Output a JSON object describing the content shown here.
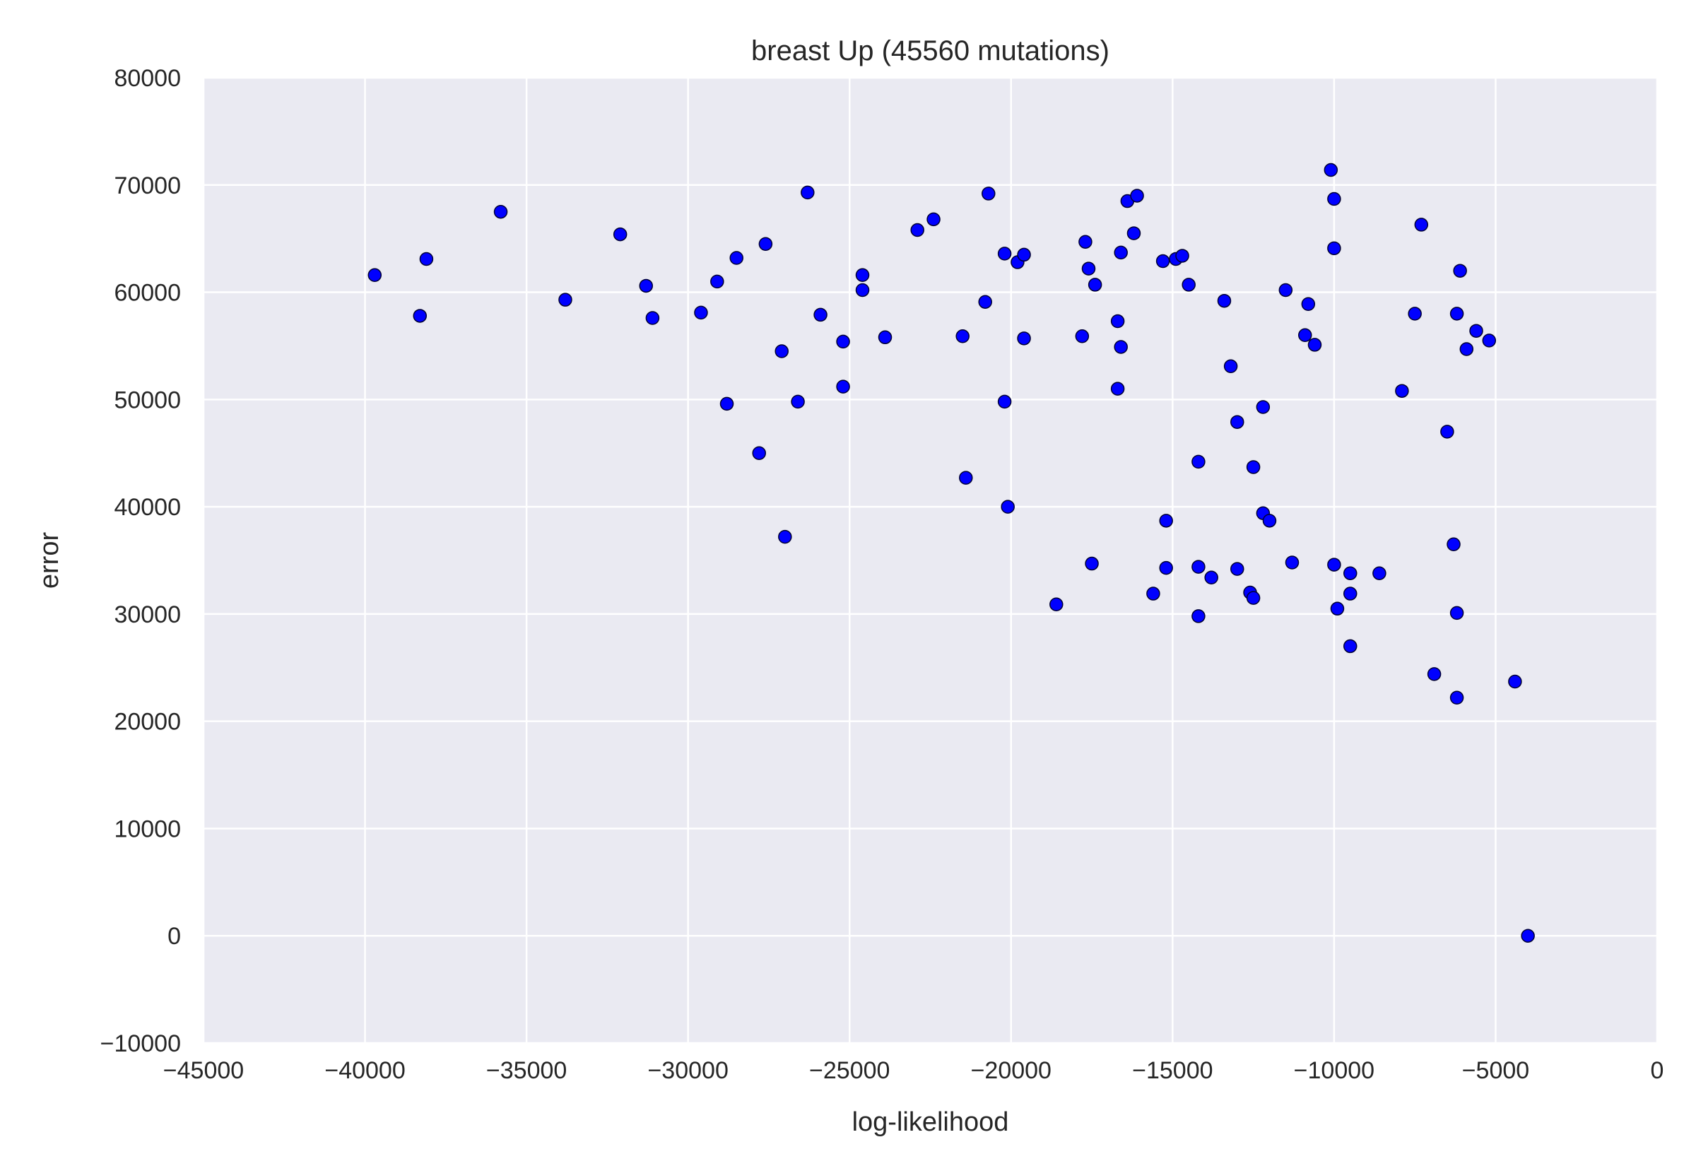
{
  "chart_data": {
    "type": "scatter",
    "title": "breast Up (45560 mutations)",
    "xlabel": "log-likelihood",
    "ylabel": "error",
    "xlim": [
      -45000,
      0
    ],
    "ylim": [
      -10000,
      80000
    ],
    "xticks": [
      -45000,
      -40000,
      -35000,
      -30000,
      -25000,
      -20000,
      -15000,
      -10000,
      -5000,
      0
    ],
    "yticks": [
      -10000,
      0,
      10000,
      20000,
      30000,
      40000,
      50000,
      60000,
      70000,
      80000
    ],
    "xtick_labels": [
      "−45000",
      "−40000",
      "−35000",
      "−30000",
      "−25000",
      "−20000",
      "−15000",
      "−10000",
      "−5000",
      "0"
    ],
    "ytick_labels": [
      "−10000",
      "0",
      "10000",
      "20000",
      "30000",
      "40000",
      "50000",
      "60000",
      "70000",
      "80000"
    ],
    "grid": true,
    "colors": {
      "plot_background": "#eaeaf2",
      "grid": "#ffffff",
      "point_fill": "#0000ff",
      "point_edge": "#000033"
    },
    "series": [
      {
        "points": [
          [
            -39700,
            61600
          ],
          [
            -38300,
            57800
          ],
          [
            -38100,
            63100
          ],
          [
            -35800,
            67500
          ],
          [
            -33800,
            59300
          ],
          [
            -32100,
            65400
          ],
          [
            -31300,
            60600
          ],
          [
            -31100,
            57600
          ],
          [
            -29600,
            58100
          ],
          [
            -29100,
            61000
          ],
          [
            -28800,
            49600
          ],
          [
            -28500,
            63200
          ],
          [
            -27800,
            45000
          ],
          [
            -27600,
            64500
          ],
          [
            -27100,
            54500
          ],
          [
            -27000,
            37200
          ],
          [
            -26600,
            49800
          ],
          [
            -26300,
            69300
          ],
          [
            -25900,
            57900
          ],
          [
            -25200,
            55400
          ],
          [
            -25200,
            51200
          ],
          [
            -24600,
            61600
          ],
          [
            -24600,
            60200
          ],
          [
            -23900,
            55800
          ],
          [
            -22900,
            65800
          ],
          [
            -22400,
            66800
          ],
          [
            -21500,
            55900
          ],
          [
            -21400,
            42700
          ],
          [
            -20800,
            59100
          ],
          [
            -20700,
            69200
          ],
          [
            -20200,
            63600
          ],
          [
            -20200,
            49800
          ],
          [
            -20100,
            40000
          ],
          [
            -19800,
            62800
          ],
          [
            -19600,
            63500
          ],
          [
            -19600,
            55700
          ],
          [
            -18600,
            30900
          ],
          [
            -17800,
            55900
          ],
          [
            -17700,
            64700
          ],
          [
            -17600,
            62200
          ],
          [
            -17500,
            34700
          ],
          [
            -17400,
            60700
          ],
          [
            -16700,
            57300
          ],
          [
            -16700,
            51000
          ],
          [
            -16600,
            63700
          ],
          [
            -16600,
            54900
          ],
          [
            -16400,
            68500
          ],
          [
            -16200,
            65500
          ],
          [
            -16100,
            69000
          ],
          [
            -15600,
            31900
          ],
          [
            -15300,
            62900
          ],
          [
            -15200,
            38700
          ],
          [
            -15200,
            34300
          ],
          [
            -14900,
            63100
          ],
          [
            -14700,
            63400
          ],
          [
            -14500,
            60700
          ],
          [
            -14200,
            44200
          ],
          [
            -14200,
            34400
          ],
          [
            -14200,
            29800
          ],
          [
            -13800,
            33400
          ],
          [
            -13400,
            59200
          ],
          [
            -13200,
            53100
          ],
          [
            -13000,
            47900
          ],
          [
            -13000,
            34200
          ],
          [
            -12600,
            32000
          ],
          [
            -12500,
            31500
          ],
          [
            -12500,
            43700
          ],
          [
            -12200,
            49300
          ],
          [
            -12200,
            39400
          ],
          [
            -12000,
            38700
          ],
          [
            -11500,
            60200
          ],
          [
            -11300,
            34800
          ],
          [
            -10900,
            56000
          ],
          [
            -10800,
            58900
          ],
          [
            -10600,
            55100
          ],
          [
            -10100,
            71400
          ],
          [
            -10000,
            68700
          ],
          [
            -10000,
            64100
          ],
          [
            -10000,
            34600
          ],
          [
            -9900,
            30500
          ],
          [
            -9500,
            33800
          ],
          [
            -9500,
            31900
          ],
          [
            -9500,
            27000
          ],
          [
            -8600,
            33800
          ],
          [
            -7900,
            50800
          ],
          [
            -7500,
            58000
          ],
          [
            -7300,
            66300
          ],
          [
            -6900,
            24400
          ],
          [
            -6500,
            47000
          ],
          [
            -6300,
            36500
          ],
          [
            -6200,
            58000
          ],
          [
            -6200,
            30100
          ],
          [
            -6200,
            22200
          ],
          [
            -6100,
            62000
          ],
          [
            -5900,
            54700
          ],
          [
            -5600,
            56400
          ],
          [
            -5200,
            55500
          ],
          [
            -4400,
            23700
          ],
          [
            -4000,
            0
          ]
        ]
      }
    ]
  }
}
